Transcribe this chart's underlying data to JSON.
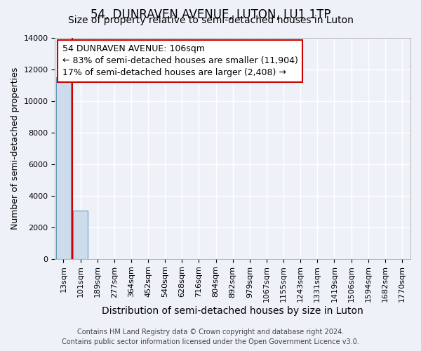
{
  "title": "54, DUNRAVEN AVENUE, LUTON, LU1 1TP",
  "subtitle": "Size of property relative to semi-detached houses in Luton",
  "xlabel": "Distribution of semi-detached houses by size in Luton",
  "ylabel": "Number of semi-detached properties",
  "bar_categories": [
    "13sqm",
    "101sqm",
    "189sqm",
    "277sqm",
    "364sqm",
    "452sqm",
    "540sqm",
    "628sqm",
    "716sqm",
    "804sqm",
    "892sqm",
    "979sqm",
    "1067sqm",
    "1155sqm",
    "1243sqm",
    "1331sqm",
    "1419sqm",
    "1506sqm",
    "1594sqm",
    "1682sqm",
    "1770sqm"
  ],
  "bar_values": [
    11500,
    3050,
    0,
    0,
    0,
    0,
    0,
    0,
    0,
    0,
    0,
    0,
    0,
    0,
    0,
    0,
    0,
    0,
    0,
    0,
    0
  ],
  "bar_color": "#ccdcec",
  "bar_edge_color": "#6699bb",
  "vline_x": 0.5,
  "vline_color": "#cc0000",
  "annotation_line1": "54 DUNRAVEN AVENUE: 106sqm",
  "annotation_line2": "← 83% of semi-detached houses are smaller (11,904)",
  "annotation_line3": "17% of semi-detached houses are larger (2,408) →",
  "annotation_box_color": "#ffffff",
  "annotation_box_edge_color": "#cc0000",
  "ylim": [
    0,
    14000
  ],
  "yticks": [
    0,
    2000,
    4000,
    6000,
    8000,
    10000,
    12000,
    14000
  ],
  "background_color": "#eef2f8",
  "grid_color": "#ffffff",
  "footer_line1": "Contains HM Land Registry data © Crown copyright and database right 2024.",
  "footer_line2": "Contains public sector information licensed under the Open Government Licence v3.0.",
  "title_fontsize": 12,
  "subtitle_fontsize": 10,
  "xlabel_fontsize": 10,
  "ylabel_fontsize": 9,
  "tick_fontsize": 8,
  "annotation_fontsize": 9,
  "footer_fontsize": 7
}
